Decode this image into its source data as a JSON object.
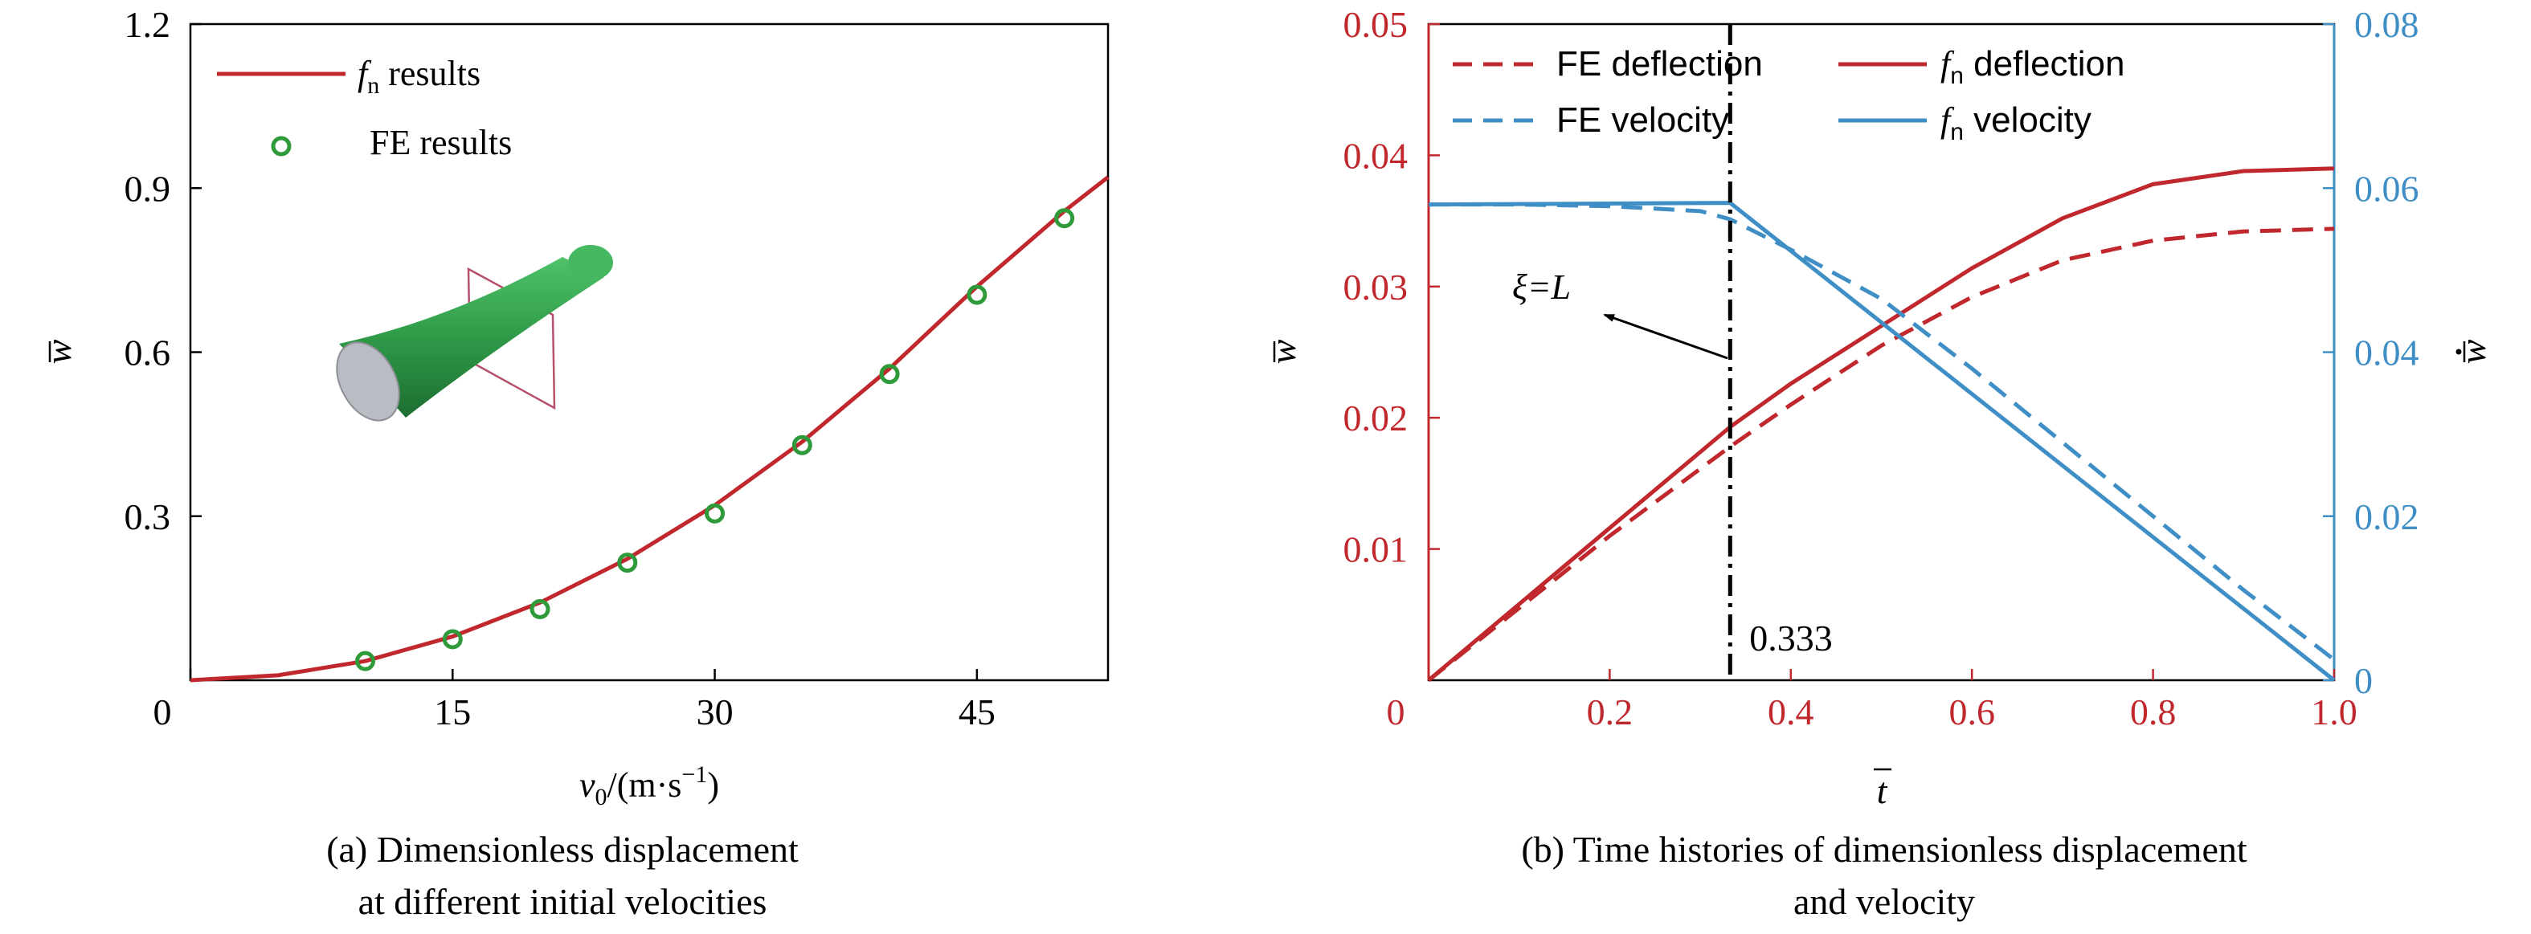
{
  "colors": {
    "red": "#c0282e",
    "blue": "#3f8fc6",
    "green": "#2e9a3a",
    "black": "#000000"
  },
  "panel_a": {
    "caption_line1": "(a) Dimensionless displacement",
    "caption_line2": "at different initial velocities",
    "inset_icon": "green-cylinder-beam-icon"
  },
  "panel_b": {
    "caption_line1": "(b) Time histories of dimensionless displacement",
    "caption_line2": "and velocity",
    "annotation_label": "ξ=L",
    "marker_label": "0.333",
    "marker_x": 0.333
  },
  "chart_data": [
    {
      "type": "line",
      "xlabel": "v0/(m·s−1)",
      "ylabel": "w̄",
      "xlim": [
        0,
        52.5
      ],
      "ylim": [
        0,
        1.2
      ],
      "xticks": [
        0,
        15,
        30,
        45
      ],
      "xtick_labels": [
        "0",
        "15",
        "30",
        "45"
      ],
      "yticks": [
        0.3,
        0.6,
        0.9,
        1.2
      ],
      "ytick_labels": [
        "0.3",
        "0.6",
        "0.9",
        "1.2"
      ],
      "grid": false,
      "legend_position": "top-left",
      "series": [
        {
          "name": "fn results",
          "style": "solid-line",
          "color": "#c0282e",
          "x": [
            0,
            5,
            10,
            15,
            20,
            25,
            30,
            35,
            40,
            45,
            50,
            52.5
          ],
          "y": [
            0,
            0.009,
            0.035,
            0.08,
            0.142,
            0.222,
            0.32,
            0.436,
            0.57,
            0.72,
            0.858,
            0.92
          ]
        },
        {
          "name": "FE results",
          "style": "circle-marker",
          "color": "#2e9a3a",
          "x": [
            10,
            15,
            20,
            25,
            30,
            35,
            40,
            45,
            50
          ],
          "y": [
            0.035,
            0.075,
            0.13,
            0.215,
            0.305,
            0.43,
            0.56,
            0.705,
            0.845
          ]
        }
      ]
    },
    {
      "type": "line",
      "xlabel": "t̄",
      "ylabel": "w̄",
      "ylabel_right": "w̄̇",
      "xlim": [
        0,
        1
      ],
      "ylim": [
        0,
        0.05
      ],
      "ylim_right": [
        0,
        0.08
      ],
      "xticks": [
        0,
        0.2,
        0.4,
        0.6,
        0.8,
        1.0
      ],
      "xtick_labels": [
        "0",
        "0.2",
        "0.4",
        "0.6",
        "0.8",
        "1.0"
      ],
      "yticks": [
        0.01,
        0.02,
        0.03,
        0.04,
        0.05
      ],
      "ytick_labels": [
        "0.01",
        "0.02",
        "0.03",
        "0.04",
        "0.05"
      ],
      "yticks_right": [
        0,
        0.02,
        0.04,
        0.06,
        0.08
      ],
      "ytick_labels_right": [
        "0",
        "0.02",
        "0.04",
        "0.06",
        "0.08"
      ],
      "grid": false,
      "legend_position": "top",
      "series": [
        {
          "name": "FE deflection",
          "axis": "left",
          "style": "dashed",
          "color": "#c0282e",
          "x": [
            0,
            0.1,
            0.2,
            0.333,
            0.4,
            0.5,
            0.6,
            0.7,
            0.8,
            0.9,
            1.0
          ],
          "y": [
            0,
            0.0055,
            0.011,
            0.0178,
            0.021,
            0.0255,
            0.0292,
            0.032,
            0.0335,
            0.0342,
            0.0344
          ]
        },
        {
          "name": "fn deflection",
          "axis": "left",
          "style": "solid",
          "color": "#c0282e",
          "x": [
            0,
            0.1,
            0.2,
            0.333,
            0.4,
            0.5,
            0.6,
            0.7,
            0.8,
            0.9,
            1.0
          ],
          "y": [
            0,
            0.0058,
            0.0116,
            0.0193,
            0.0226,
            0.027,
            0.0314,
            0.0352,
            0.0378,
            0.0388,
            0.039
          ]
        },
        {
          "name": "FE velocity",
          "axis": "right",
          "style": "dashed",
          "color": "#3f8fc6",
          "x": [
            0,
            0.1,
            0.2,
            0.3,
            0.333,
            0.4,
            0.5,
            0.6,
            0.7,
            0.8,
            0.9,
            1.0
          ],
          "y": [
            0.058,
            0.058,
            0.0578,
            0.0572,
            0.0562,
            0.0525,
            0.0465,
            0.038,
            0.029,
            0.02,
            0.011,
            0.0025
          ]
        },
        {
          "name": "fn velocity",
          "axis": "right",
          "style": "solid",
          "color": "#3f8fc6",
          "x": [
            0,
            0.333,
            1.0
          ],
          "y": [
            0.058,
            0.0582,
            0
          ]
        }
      ]
    }
  ]
}
